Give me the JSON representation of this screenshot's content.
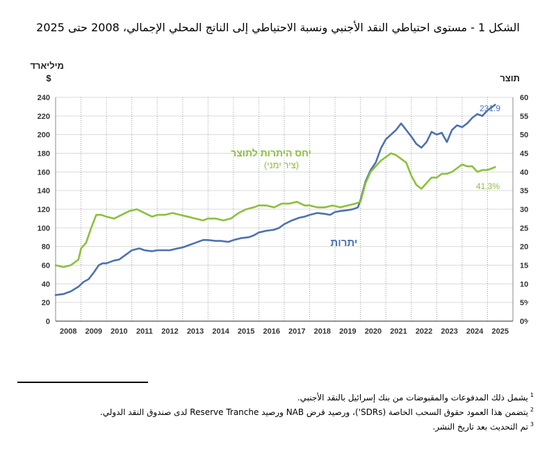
{
  "title": "الشكل 1 - مستوى احتياطي النقد الأجنبي ونسبة الاحتياطي إلى الناتج المحلي الإجمالي، 2008 حتى 2025",
  "chart_data": {
    "type": "line",
    "left_axis_title": "מיליארד",
    "left_axis_unit": "$",
    "right_axis_title": "תוצר",
    "ylim_left": [
      0,
      240
    ],
    "ylim_right": [
      0,
      60
    ],
    "left_ticks": [
      "0",
      "20",
      "40",
      "60",
      "80",
      "100",
      "120",
      "140",
      "160",
      "180",
      "200",
      "220",
      "240"
    ],
    "right_ticks": [
      "0%",
      "5%",
      "10%",
      "15%",
      "20%",
      "25%",
      "30%",
      "35%",
      "40%",
      "45%",
      "50%",
      "55%",
      "60%"
    ],
    "x_labels": [
      "2008",
      "2009",
      "2010",
      "2011",
      "2012",
      "2013",
      "2014",
      "2015",
      "2016",
      "2017",
      "2018",
      "2019",
      "2020",
      "2021",
      "2022",
      "2023",
      "2024",
      "2025"
    ],
    "series": [
      {
        "name": "יתרות",
        "axis": "left",
        "color": "#4a72b0",
        "label": "יתרות",
        "end_label": "231.9",
        "x": [
          2008.0,
          2008.3,
          2008.6,
          2008.9,
          2009.1,
          2009.3,
          2009.5,
          2009.7,
          2009.85,
          2010.0,
          2010.3,
          2010.5,
          2010.8,
          2011.0,
          2011.3,
          2011.5,
          2011.8,
          2012.0,
          2012.3,
          2012.5,
          2012.8,
          2013.0,
          2013.3,
          2013.5,
          2013.8,
          2014.0,
          2014.3,
          2014.5,
          2014.8,
          2015.0,
          2015.3,
          2015.6,
          2015.8,
          2016.0,
          2016.3,
          2016.6,
          2016.8,
          2017.0,
          2017.3,
          2017.6,
          2017.8,
          2018.0,
          2018.3,
          2018.6,
          2018.8,
          2019.0,
          2019.2,
          2019.5,
          2019.7,
          2019.9,
          2020.0,
          2020.2,
          2020.4,
          2020.6,
          2020.8,
          2021.0,
          2021.2,
          2021.4,
          2021.6,
          2021.8,
          2022.0,
          2022.2,
          2022.4,
          2022.6,
          2022.8,
          2023.0,
          2023.2,
          2023.4,
          2023.6,
          2023.8,
          2024.0,
          2024.2,
          2024.4,
          2024.6,
          2024.8,
          2025.0,
          2025.3
        ],
        "values": [
          28,
          29,
          32,
          37,
          42,
          45,
          52,
          60,
          62,
          62,
          65,
          66,
          72,
          76,
          78,
          76,
          75,
          76,
          76,
          76,
          78,
          79,
          82,
          84,
          87,
          87,
          86,
          86,
          85,
          87,
          89,
          90,
          92,
          95,
          97,
          98,
          100,
          104,
          108,
          111,
          112,
          114,
          116,
          115,
          114,
          117,
          118,
          119,
          120,
          122,
          130,
          150,
          162,
          170,
          185,
          195,
          200,
          205,
          212,
          205,
          198,
          190,
          186,
          192,
          203,
          200,
          202,
          192,
          205,
          210,
          208,
          212,
          218,
          222,
          220,
          226,
          232
        ]
      },
      {
        "name": "יחס היתרות לתוצר (ציר ימני)",
        "axis": "right",
        "color": "#8bc03a",
        "label": "יחס היתרות לתוצר",
        "sublabel": "(ציר ימני)",
        "end_label": "41.3%",
        "x": [
          2008.0,
          2008.3,
          2008.6,
          2008.9,
          2009.0,
          2009.2,
          2009.4,
          2009.6,
          2009.8,
          2010.0,
          2010.3,
          2010.6,
          2010.9,
          2011.2,
          2011.5,
          2011.8,
          2012.0,
          2012.3,
          2012.6,
          2012.9,
          2013.2,
          2013.5,
          2013.8,
          2014.0,
          2014.3,
          2014.6,
          2014.9,
          2015.2,
          2015.5,
          2015.8,
          2016.0,
          2016.3,
          2016.6,
          2016.9,
          2017.2,
          2017.5,
          2017.8,
          2018.0,
          2018.3,
          2018.6,
          2018.9,
          2019.2,
          2019.5,
          2019.8,
          2020.0,
          2020.2,
          2020.4,
          2020.6,
          2020.8,
          2021.0,
          2021.2,
          2021.4,
          2021.6,
          2021.8,
          2022.0,
          2022.2,
          2022.4,
          2022.6,
          2022.8,
          2023.0,
          2023.2,
          2023.4,
          2023.6,
          2023.8,
          2024.0,
          2024.2,
          2024.4,
          2024.6,
          2024.8,
          2025.0,
          2025.3
        ],
        "values": [
          15.0,
          14.5,
          15.0,
          16.5,
          19.5,
          21.0,
          25.0,
          28.5,
          28.5,
          28.0,
          27.5,
          28.5,
          29.5,
          30.0,
          29.0,
          28.0,
          28.5,
          28.5,
          29.0,
          28.5,
          28.0,
          27.5,
          27.0,
          27.5,
          27.5,
          27.0,
          27.5,
          29.0,
          30.0,
          30.5,
          31.0,
          31.0,
          30.5,
          31.5,
          31.5,
          32.0,
          31.0,
          31.0,
          30.5,
          30.5,
          31.0,
          30.5,
          31.0,
          31.5,
          32.0,
          37.0,
          40.0,
          41.5,
          43.0,
          44.0,
          45.0,
          44.5,
          43.5,
          42.5,
          39.0,
          36.5,
          35.5,
          37.0,
          38.5,
          38.5,
          39.5,
          39.5,
          40.0,
          41.0,
          42.0,
          41.5,
          41.5,
          40.0,
          40.5,
          40.5,
          41.3
        ]
      }
    ]
  },
  "footnotes": [
    {
      "mark": "1",
      "text": "يشمل ذلك المدفوعات والمقبوضات من بنك إسرائيل بالنقد الأجنبي."
    },
    {
      "mark": "2",
      "text": "يتضمن هذا العمود حقوق السحب الخاصة (SDRs')، ورصيد قرض NAB ورصيد Reserve Tranche لدى صندوق النقد الدولي."
    },
    {
      "mark": "3",
      "text": "تم التحديث بعد تاريخ النشر."
    }
  ]
}
